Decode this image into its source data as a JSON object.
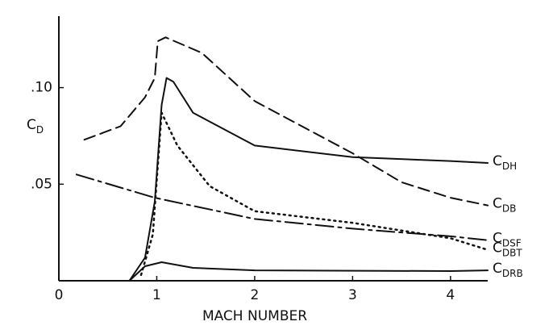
{
  "chart_data": {
    "type": "line",
    "x_label": "MACH NUMBER",
    "y_label": "CD",
    "xlim": [
      0,
      4.38
    ],
    "ylim": [
      0,
      0.137
    ],
    "xticks": [
      0,
      1,
      2,
      3,
      4
    ],
    "yticks": [
      {
        "value": 0.05,
        "label": ".05"
      },
      {
        "value": 0.1,
        "label": ".10"
      }
    ],
    "series": [
      {
        "name": "CDH",
        "color": "#111111",
        "dash": "solid",
        "x": [
          0.72,
          0.88,
          0.98,
          1.05,
          1.1,
          1.17,
          1.37,
          2.0,
          3.0,
          4.0,
          4.38
        ],
        "values": [
          0,
          0.012,
          0.041,
          0.091,
          0.105,
          0.103,
          0.087,
          0.07,
          0.064,
          0.062,
          0.061
        ]
      },
      {
        "name": "CDB",
        "color": "#111111",
        "dash": "dashed",
        "x": [
          0.26,
          0.63,
          0.88,
          0.98,
          1.01,
          1.09,
          1.46,
          2.0,
          3.0,
          3.5,
          4.0,
          4.38
        ],
        "values": [
          0.073,
          0.08,
          0.095,
          0.105,
          0.124,
          0.126,
          0.118,
          0.093,
          0.066,
          0.051,
          0.043,
          0.039
        ]
      },
      {
        "name": "CDSF",
        "color": "#111111",
        "dash": "longdash",
        "x": [
          0.18,
          0.98,
          2.0,
          3.0,
          4.0,
          4.38
        ],
        "values": [
          0.055,
          0.043,
          0.032,
          0.027,
          0.023,
          0.021
        ]
      },
      {
        "name": "CDBT",
        "color": "#111111",
        "dash": "dotted",
        "x": [
          0.84,
          0.96,
          1.05,
          1.21,
          1.54,
          2.0,
          3.0,
          4.0,
          4.38
        ],
        "values": [
          0.003,
          0.024,
          0.087,
          0.07,
          0.049,
          0.036,
          0.03,
          0.022,
          0.016
        ]
      },
      {
        "name": "CDRB",
        "color": "#111111",
        "dash": "solid",
        "x": [
          0.72,
          0.88,
          1.05,
          1.37,
          2.0,
          4.0,
          4.38
        ],
        "values": [
          0,
          0.0075,
          0.0096,
          0.0067,
          0.0054,
          0.005,
          0.0054
        ]
      }
    ]
  }
}
